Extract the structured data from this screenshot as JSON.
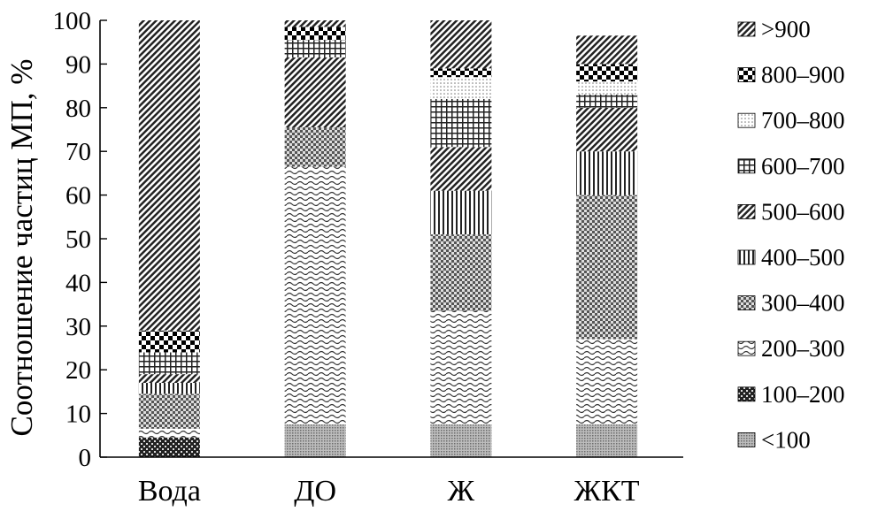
{
  "chart_data": {
    "type": "bar",
    "stacked": true,
    "title": "",
    "xlabel": "",
    "ylabel": "Соотношение частиц МП, %",
    "ylim": [
      0,
      100
    ],
    "yticks": [
      "0",
      "10",
      "20",
      "30",
      "40",
      "50",
      "60",
      "70",
      "80",
      "90",
      "100"
    ],
    "categories": [
      "Вода",
      "ДО",
      "Ж",
      "ЖКТ"
    ],
    "legend_position": "right",
    "series": [
      {
        "name": "<100",
        "pattern": "fine-dots",
        "values": [
          0,
          7.5,
          7.5,
          7.5
        ]
      },
      {
        "name": "100–200",
        "pattern": "dense-check",
        "values": [
          4.5,
          0,
          0,
          0
        ]
      },
      {
        "name": "200–300",
        "pattern": "waves",
        "values": [
          2,
          59,
          26,
          19.5
        ]
      },
      {
        "name": "300–400",
        "pattern": "checker",
        "values": [
          8,
          9,
          17.5,
          33
        ]
      },
      {
        "name": "400–500",
        "pattern": "vertical-lines",
        "values": [
          2.5,
          0,
          10,
          10
        ]
      },
      {
        "name": "500–600",
        "pattern": "diagonal",
        "values": [
          2,
          16,
          10,
          10
        ]
      },
      {
        "name": "600–700",
        "pattern": "grid",
        "values": [
          5,
          4,
          11,
          3
        ]
      },
      {
        "name": "700–800",
        "pattern": "light-dots",
        "values": [
          0,
          0,
          5,
          3
        ]
      },
      {
        "name": "800–900",
        "pattern": "big-check",
        "values": [
          5,
          3,
          2,
          4
        ]
      },
      {
        "name": ">900",
        "pattern": "diagonal",
        "values": [
          71,
          1.5,
          11,
          6.5
        ]
      }
    ]
  }
}
